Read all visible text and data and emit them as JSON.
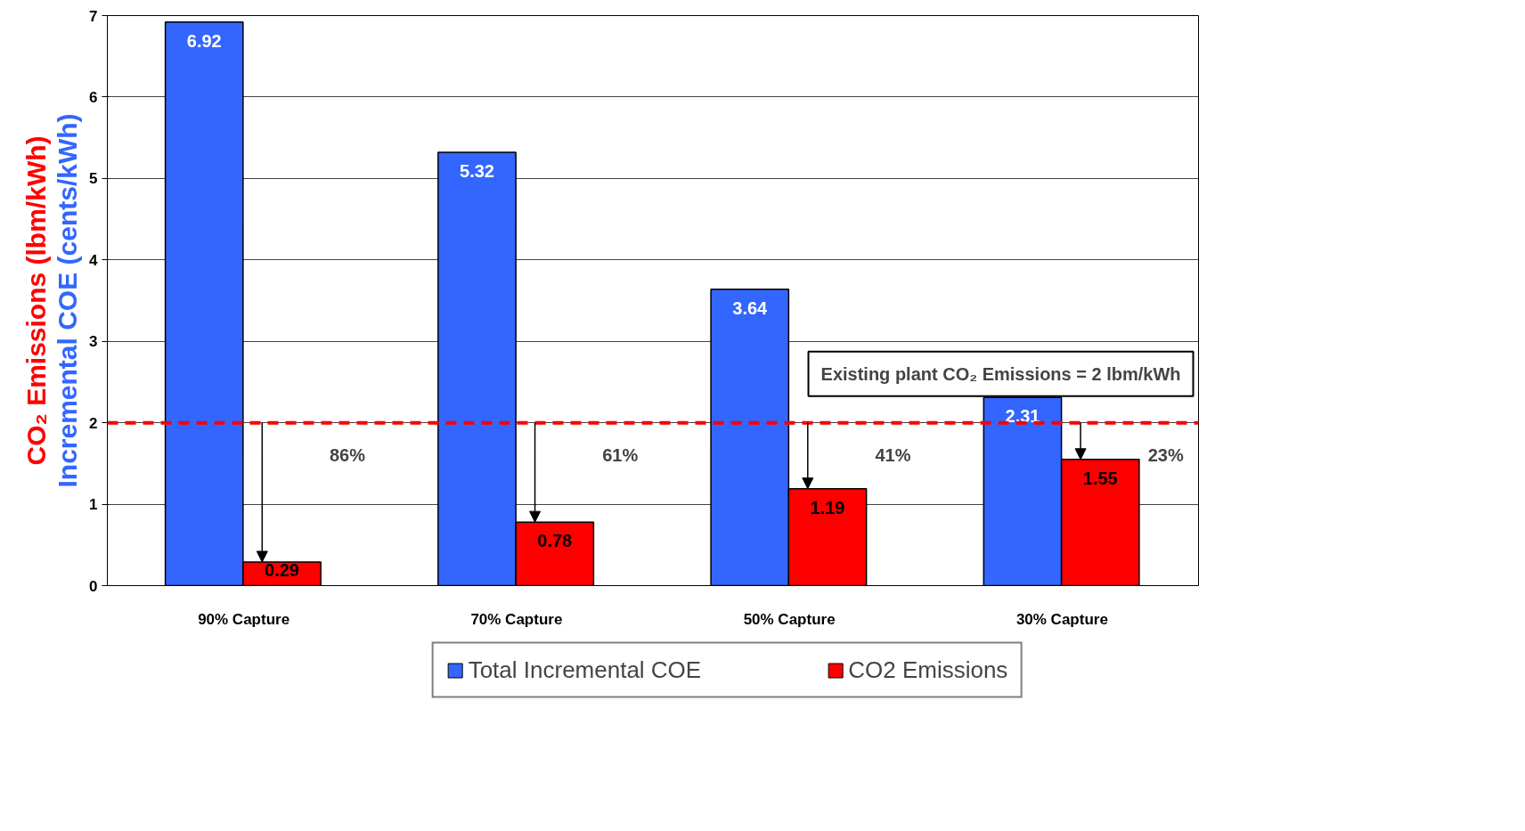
{
  "chart_data": {
    "type": "bar",
    "ylabel": "Incremental COE (cents/kWh)",
    "y2label": "CO₂ Emissions (lbm/kWh)",
    "categories": [
      "90% Capture",
      "70% Capture",
      "50% Capture",
      "30% Capture"
    ],
    "series": [
      {
        "name": "Total Incremental COE",
        "color": "#3366ff",
        "values": [
          6.92,
          5.32,
          3.64,
          2.31
        ]
      },
      {
        "name": "CO2 Emissions",
        "color": "#ff0000",
        "values": [
          0.29,
          0.78,
          1.19,
          1.55
        ]
      }
    ],
    "data_labels": true,
    "ylim": [
      0,
      7
    ],
    "yticks": [
      0,
      1,
      2,
      3,
      4,
      5,
      6,
      7
    ],
    "grid": "y",
    "ref_lines": [
      {
        "axis": "y",
        "value": 2,
        "label": "Existing plant CO₂ Emissions = 2 lbm/kWh",
        "color": "#ff0000",
        "line_style": "dashed"
      }
    ],
    "annotations": [
      "86%",
      "61%",
      "41%",
      "23%"
    ],
    "legend": "bottom"
  }
}
